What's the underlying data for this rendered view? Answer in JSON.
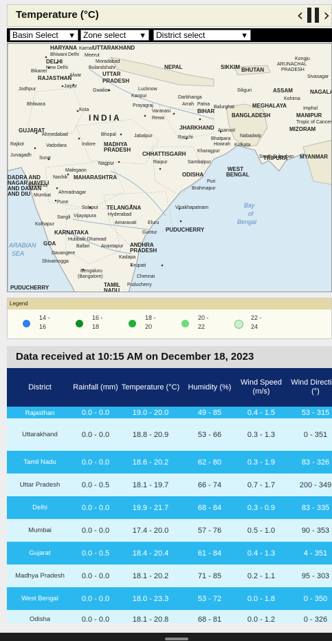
{
  "header": {
    "title": "Temperature (°C)"
  },
  "controls": {
    "prev_icon": "chevron-left-icon",
    "pause_icon": "pause-icon",
    "next_icon": "chevron-right-icon"
  },
  "selects": {
    "basin": "Basin Select",
    "zone": "Zone select",
    "district": "District select"
  },
  "map": {
    "labels": [
      "HARYANA",
      "Karnal",
      "UTTARAKHAND",
      "Bhiwani",
      "Delhi",
      "Meerut",
      "DELHI",
      "Moradabad",
      "New Delhi",
      "Bulandshahr",
      "Bikaner",
      "UTTAR",
      "RAJASTHAN",
      "Alwar",
      "PRADESH",
      "Jodhpur",
      "Jaipur",
      "Gwalior",
      "Lucknow",
      "Kanpur",
      "Bhilwara",
      "Kota",
      "Prayagraj",
      "Varanasi",
      "Rewa",
      "INDIA",
      "NEPAL",
      "SIKKIM",
      "BHUTAN",
      "ARUNACHAL",
      "PRADESH",
      "Kongju",
      "Sivasagar",
      "Darbhanga",
      "Arrah",
      "Patna",
      "Balurghat",
      "BIHAR",
      "Siliguri",
      "ASSAM",
      "Kohima",
      "NAGALAND",
      "MEGHALAYA",
      "Imphal",
      "MANIPUR",
      "Tropic of Cancer",
      "MIZORAM",
      "BANGLADESH",
      "GUJARAT",
      "Ahmedabad",
      "Bhopal",
      "Jabalpur",
      "JHARKHAND",
      "Ranchi",
      "Asansol",
      "Bhatpara",
      "Howrah",
      "Kolkata",
      "Nabadwip",
      "Rajkot",
      "Vadodara",
      "Indore",
      "MADHYA",
      "Surat",
      "Junagadh",
      "CHHATTISGARH",
      "Raipur",
      "Kharagpur",
      "South Suburban",
      "TRIPURA",
      "MYANMAR",
      "Nagpur",
      "Sambalpur",
      "Malegaon",
      "Nashik",
      "MAHARASHTRA",
      "ODISHA",
      "WEST",
      "BENGAL",
      "Puri",
      "Brahmapur",
      "Bhiwandi",
      "Ahmadnagar",
      "Mumbai",
      "Pune",
      "TELANGANA",
      "Hyderabad",
      "Visakhapatnam",
      "Solapur",
      "Vijayapura",
      "Amaravati",
      "Eluru",
      "Guntur",
      "Bay",
      "of",
      "Bengal",
      "Sangli",
      "Kolhapur",
      "KARNATAKA",
      "Hubballi-Dharwad",
      "Ballari",
      "Anantapur",
      "ANDHRA",
      "Kadapa",
      "PUDUCHERRY",
      "GOA",
      "Davangere",
      "Shivamogga",
      "Tirupati",
      "Bengaluru",
      "(Bangalore)",
      "Chennai",
      "TAMIL",
      "NADU",
      "Puducherry",
      "ARABIAN",
      "SEA",
      "DADRA AND",
      "NAGAR HAVELI",
      "AND DAMAN",
      "AND DIU"
    ]
  },
  "legend": {
    "heading": "Legend",
    "items": [
      {
        "range_top": "14 -",
        "range_bottom": "16",
        "color": "#2f80ed"
      },
      {
        "range_top": "16 -",
        "range_bottom": "18",
        "color": "#0b8f1e"
      },
      {
        "range_top": "18 -",
        "range_bottom": "20",
        "color": "#1fb13a"
      },
      {
        "range_top": "20 -",
        "range_bottom": "22",
        "color": "#6cdc7a"
      },
      {
        "range_top": "22 -",
        "range_bottom": "24",
        "color": "#cdefcd"
      }
    ]
  },
  "data_section": {
    "title": "Data received at 10:15 AM on December 18, 2023",
    "columns": [
      "District",
      "Rainfall (mm)",
      "Temperature (°C)",
      "Humidity (%)",
      "Wind Speed (m/s)",
      "Wind Direction (°)"
    ],
    "rows": [
      {
        "district": "Rajasthan",
        "rainfall": "0.0 - 0.0",
        "temperature": "19.0 - 20.0",
        "humidity": "49 - 85",
        "wind_speed": "0.4 - 1.5",
        "wind_direction": "53 - 315"
      },
      {
        "district": "Uttarakhand",
        "rainfall": "0.0 - 0.0",
        "temperature": "18.8 - 20.9",
        "humidity": "53 - 66",
        "wind_speed": "0.3 - 1.3",
        "wind_direction": "0 - 351"
      },
      {
        "district": "Tamil Nadu",
        "rainfall": "0.0 - 0.0",
        "temperature": "18.6 - 20.2",
        "humidity": "62 - 80",
        "wind_speed": "0.3 - 1.9",
        "wind_direction": "83 - 326"
      },
      {
        "district": "Uttar Pradesh",
        "rainfall": "0.0 - 0.5",
        "temperature": "18.1 - 19.7",
        "humidity": "66 - 74",
        "wind_speed": "0.7 - 1.7",
        "wind_direction": "200 - 349"
      },
      {
        "district": "Delhi",
        "rainfall": "0.0 - 0.0",
        "temperature": "19.9 - 21.7",
        "humidity": "68 - 84",
        "wind_speed": "0.3 - 0.9",
        "wind_direction": "83 - 335"
      },
      {
        "district": "Mumbai",
        "rainfall": "0.0 - 0.0",
        "temperature": "17.4 - 20.0",
        "humidity": "57 - 76",
        "wind_speed": "0.5 - 1.0",
        "wind_direction": "90 - 353"
      },
      {
        "district": "Gujarat",
        "rainfall": "0.0 - 0.5",
        "temperature": "18.4 - 20.4",
        "humidity": "61 - 84",
        "wind_speed": "0.4 - 1.3",
        "wind_direction": "4 - 351"
      },
      {
        "district": "Madhya Pradesh",
        "rainfall": "0.0 - 0.0",
        "temperature": "18.1 - 20.2",
        "humidity": "71 - 85",
        "wind_speed": "0.2 - 1.1",
        "wind_direction": "95 - 303"
      },
      {
        "district": "West Bengal",
        "rainfall": "0.0 - 0.0",
        "temperature": "18.0 - 23.3",
        "humidity": "53 - 72",
        "wind_speed": "0.0 - 1.8",
        "wind_direction": "0 - 350"
      },
      {
        "district": "Odisha",
        "rainfall": "0.0 - 0.0",
        "temperature": "18.1 - 20.8",
        "humidity": "68 - 81",
        "wind_speed": "0.0 - 1.2",
        "wind_direction": "0 - 326"
      }
    ]
  }
}
